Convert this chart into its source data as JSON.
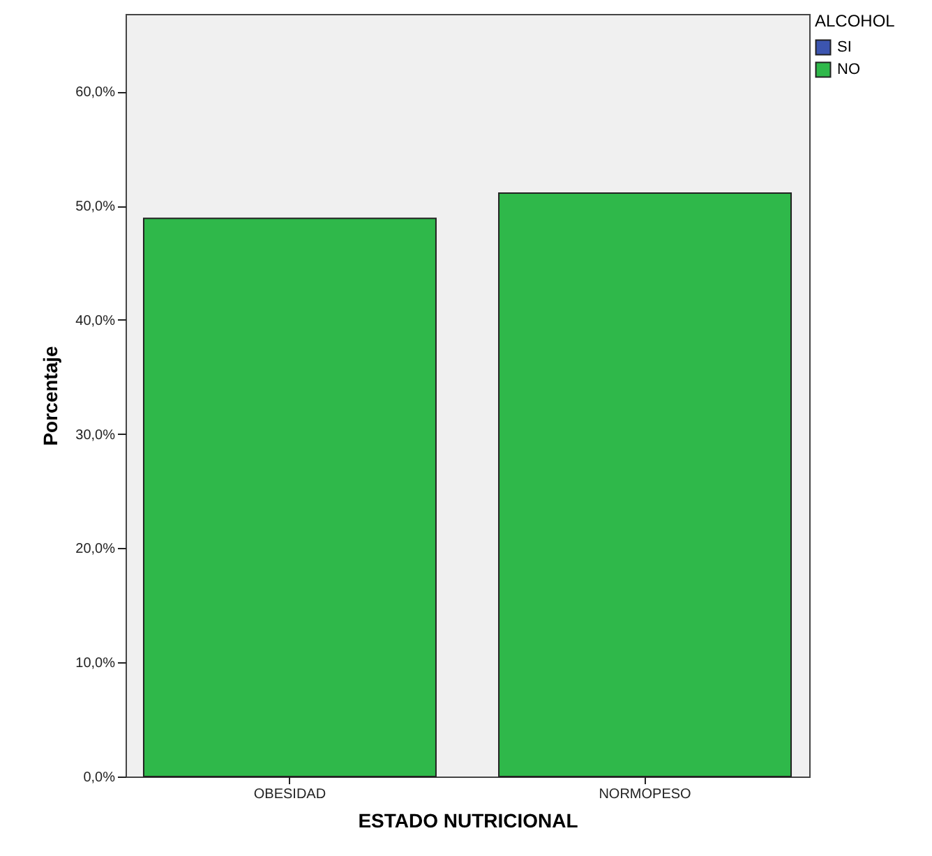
{
  "chart_data": {
    "type": "bar",
    "xlabel": "ESTADO NUTRICIONAL",
    "ylabel": "Porcentaje",
    "legend_title": "ALCOHOL",
    "categories": [
      "OBESIDAD",
      "NORMOPESO"
    ],
    "series": [
      {
        "name": "SI",
        "color": "#3c55b0",
        "values": [
          null,
          null
        ]
      },
      {
        "name": "NO",
        "color": "#2fb84a",
        "values": [
          48.9,
          51.1
        ]
      }
    ],
    "stacked": true,
    "ylim": [
      0,
      66.8
    ],
    "yticks": [
      {
        "value": 0,
        "label": "0,0%"
      },
      {
        "value": 10,
        "label": "10,0%"
      },
      {
        "value": 20,
        "label": "20,0%"
      },
      {
        "value": 30,
        "label": "30,0%"
      },
      {
        "value": 40,
        "label": "40,0%"
      },
      {
        "value": 50,
        "label": "50,0%"
      },
      {
        "value": 60,
        "label": "60,0%"
      }
    ],
    "grid": false,
    "legend": "top right"
  }
}
